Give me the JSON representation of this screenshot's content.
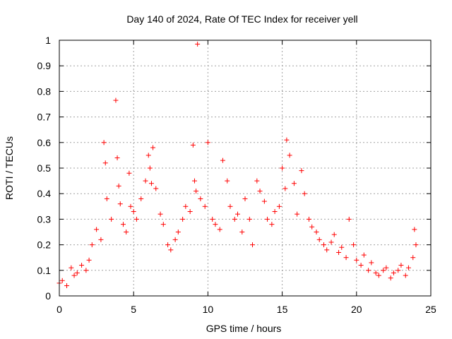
{
  "chart_data": {
    "type": "scatter",
    "title": "Day 140 of 2024, Rate Of TEC Index for receiver yell",
    "xlabel": "GPS time / hours",
    "ylabel": "ROTI / TECUs",
    "xlim": [
      0,
      25
    ],
    "ylim": [
      0,
      1
    ],
    "xticks": [
      0,
      5,
      10,
      15,
      20,
      25
    ],
    "yticks": [
      0,
      0.1,
      0.2,
      0.3,
      0.4,
      0.5,
      0.6,
      0.7,
      0.8,
      0.9,
      1
    ],
    "ytick_labels": [
      "0",
      "0.1",
      "0.2",
      "0.3",
      "0.4",
      "0.5",
      "0.6",
      "0.7",
      "0.8",
      "0.9",
      "1"
    ],
    "grid": true,
    "marker": "+",
    "color": "#ff0000",
    "series": [
      {
        "name": "ROTI",
        "x": [
          0.0,
          0.2,
          0.5,
          0.8,
          1.0,
          1.2,
          1.5,
          1.8,
          2.0,
          2.2,
          2.5,
          2.8,
          3.0,
          3.1,
          3.2,
          3.5,
          3.8,
          3.9,
          4.0,
          4.1,
          4.3,
          4.5,
          4.7,
          4.8,
          5.0,
          5.2,
          5.5,
          5.8,
          6.0,
          6.1,
          6.2,
          6.3,
          6.5,
          6.8,
          7.0,
          7.3,
          7.5,
          7.8,
          8.0,
          8.3,
          8.5,
          8.8,
          9.0,
          9.1,
          9.2,
          9.3,
          9.5,
          9.8,
          10.0,
          10.3,
          10.5,
          10.8,
          11.0,
          11.3,
          11.5,
          11.8,
          12.0,
          12.3,
          12.5,
          12.8,
          13.0,
          13.3,
          13.5,
          13.8,
          14.0,
          14.3,
          14.5,
          14.8,
          15.0,
          15.2,
          15.3,
          15.5,
          15.8,
          16.0,
          16.3,
          16.5,
          16.8,
          17.0,
          17.3,
          17.5,
          17.8,
          18.0,
          18.3,
          18.5,
          18.8,
          19.0,
          19.3,
          19.5,
          19.8,
          20.0,
          20.3,
          20.5,
          20.8,
          21.0,
          21.3,
          21.5,
          21.8,
          22.0,
          22.3,
          22.5,
          22.8,
          23.0,
          23.3,
          23.5,
          23.8,
          23.9,
          24.0
        ],
        "y": [
          0.05,
          0.06,
          0.04,
          0.11,
          0.08,
          0.09,
          0.12,
          0.1,
          0.14,
          0.2,
          0.26,
          0.22,
          0.6,
          0.52,
          0.38,
          0.3,
          0.765,
          0.54,
          0.43,
          0.36,
          0.28,
          0.25,
          0.48,
          0.35,
          0.33,
          0.3,
          0.38,
          0.45,
          0.55,
          0.5,
          0.44,
          0.58,
          0.42,
          0.32,
          0.28,
          0.2,
          0.18,
          0.22,
          0.25,
          0.3,
          0.35,
          0.33,
          0.59,
          0.45,
          0.41,
          0.985,
          0.38,
          0.35,
          0.6,
          0.3,
          0.28,
          0.26,
          0.53,
          0.45,
          0.35,
          0.3,
          0.32,
          0.25,
          0.38,
          0.3,
          0.2,
          0.45,
          0.41,
          0.37,
          0.3,
          0.28,
          0.33,
          0.35,
          0.5,
          0.42,
          0.61,
          0.55,
          0.44,
          0.32,
          0.49,
          0.4,
          0.3,
          0.27,
          0.25,
          0.22,
          0.2,
          0.18,
          0.21,
          0.24,
          0.17,
          0.19,
          0.15,
          0.3,
          0.2,
          0.14,
          0.12,
          0.16,
          0.1,
          0.13,
          0.09,
          0.08,
          0.1,
          0.11,
          0.07,
          0.09,
          0.1,
          0.12,
          0.08,
          0.11,
          0.15,
          0.26,
          0.2
        ]
      }
    ]
  }
}
